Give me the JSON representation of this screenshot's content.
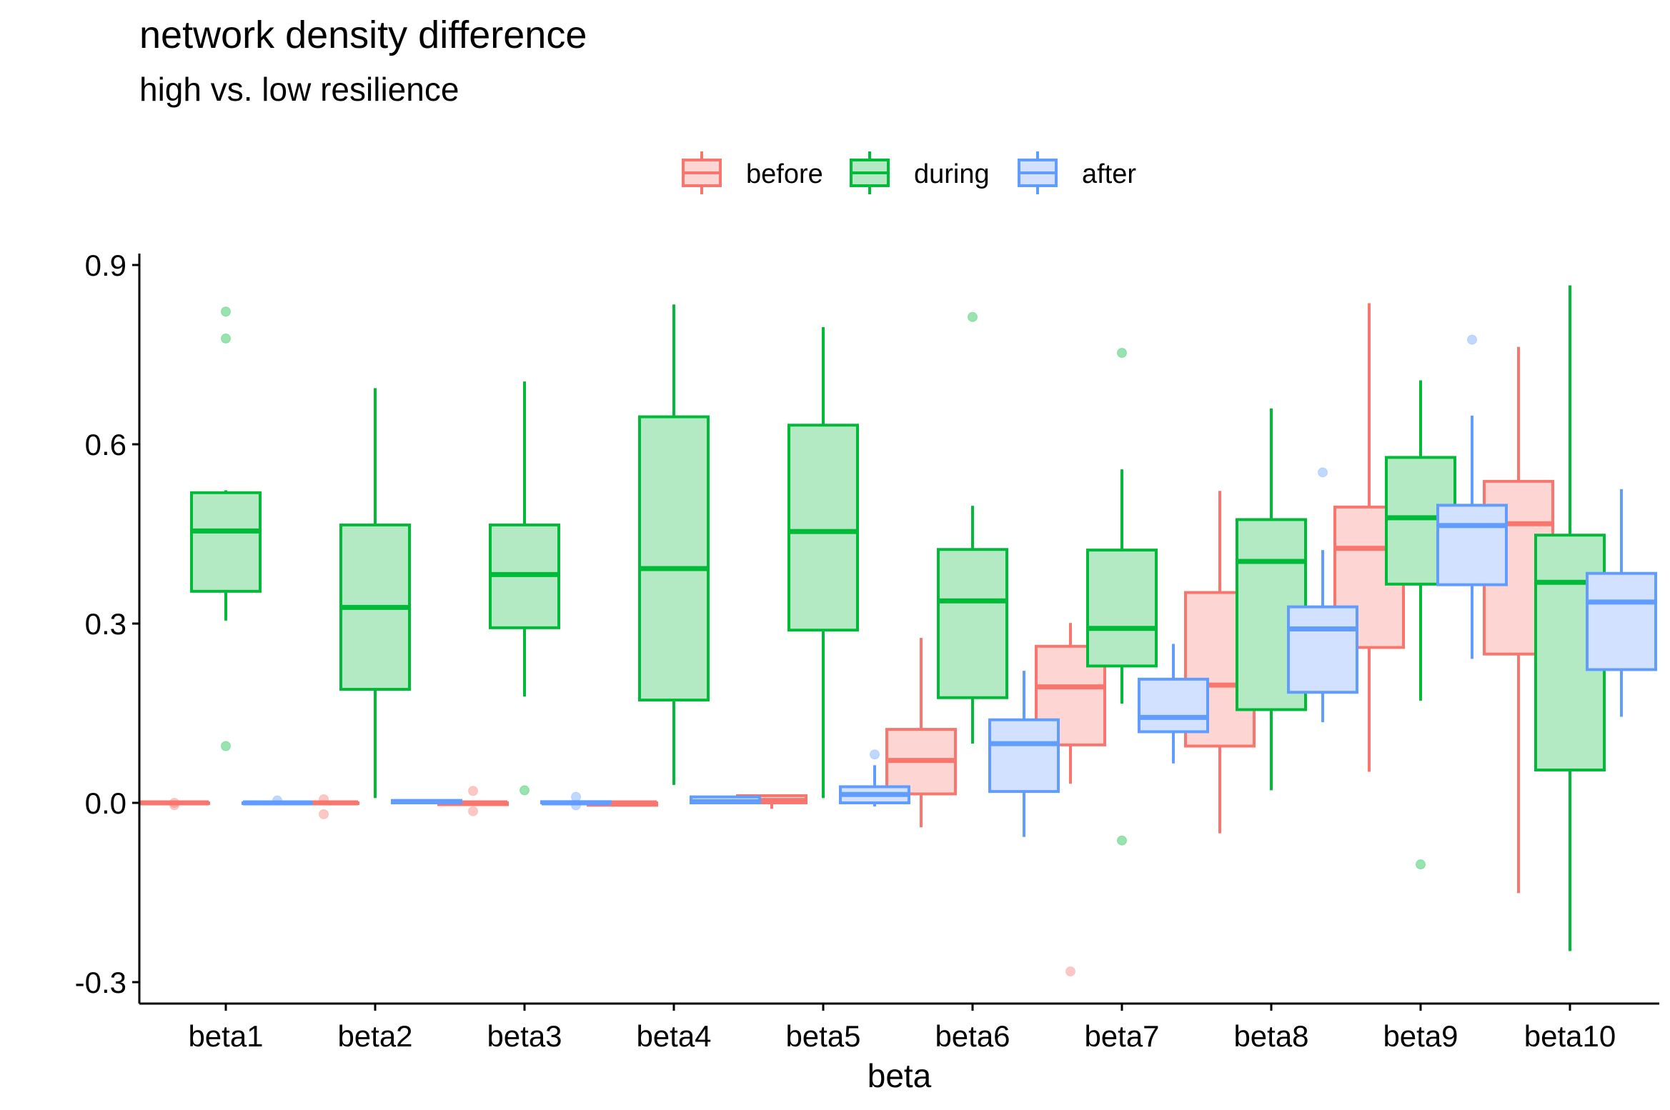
{
  "chart_data": {
    "type": "boxplot",
    "title": "network density difference",
    "subtitle": "high vs. low resilience",
    "xlabel": "beta",
    "ylabel": "",
    "ylim": [
      -0.34,
      0.91
    ],
    "yticks": [
      -0.3,
      0.0,
      0.3,
      0.6,
      0.9
    ],
    "ytick_labels": [
      "-0.3",
      "0.0",
      "0.3",
      "0.6",
      "0.9"
    ],
    "categories": [
      "beta1",
      "beta2",
      "beta3",
      "beta4",
      "beta5",
      "beta6",
      "beta7",
      "beta8",
      "beta9",
      "beta10"
    ],
    "legend_position": "top",
    "grid": false,
    "series": [
      {
        "name": "before",
        "color": "#F8766D",
        "fill": "#FDD6D3",
        "boxes": [
          {
            "category": "beta1",
            "min": 0.0,
            "q1": 0.0,
            "median": 0.0,
            "q3": 0.0,
            "max": 0.0,
            "outliers": [
              0.0,
              -0.004
            ]
          },
          {
            "category": "beta2",
            "min": 0.0,
            "q1": 0.0,
            "median": 0.0,
            "q3": 0.0,
            "max": 0.0,
            "outliers": [
              0.006,
              -0.019
            ]
          },
          {
            "category": "beta3",
            "min": -0.003,
            "q1": -0.003,
            "median": 0.0,
            "q3": 0.0,
            "max": 0.0,
            "outliers": [
              0.02,
              -0.014
            ]
          },
          {
            "category": "beta4",
            "min": -0.006,
            "q1": -0.004,
            "median": 0.0,
            "q3": 0.0,
            "max": 0.002,
            "outliers": []
          },
          {
            "category": "beta5",
            "min": -0.01,
            "q1": 0.0,
            "median": 0.004,
            "q3": 0.012,
            "max": 0.014,
            "outliers": []
          },
          {
            "category": "beta6",
            "min": -0.041,
            "q1": 0.015,
            "median": 0.071,
            "q3": 0.123,
            "max": 0.276,
            "outliers": []
          },
          {
            "category": "beta7",
            "min": 0.032,
            "q1": 0.097,
            "median": 0.194,
            "q3": 0.262,
            "max": 0.301,
            "outliers": [
              -0.282
            ]
          },
          {
            "category": "beta8",
            "min": -0.051,
            "q1": 0.095,
            "median": 0.197,
            "q3": 0.352,
            "max": 0.522,
            "outliers": []
          },
          {
            "category": "beta9",
            "min": 0.052,
            "q1": 0.26,
            "median": 0.426,
            "q3": 0.495,
            "max": 0.836,
            "outliers": []
          },
          {
            "category": "beta10",
            "min": -0.151,
            "q1": 0.249,
            "median": 0.467,
            "q3": 0.538,
            "max": 0.763,
            "outliers": []
          }
        ]
      },
      {
        "name": "during",
        "color": "#00BA38",
        "fill": "#B3EAC3",
        "boxes": [
          {
            "category": "beta1",
            "min": 0.305,
            "q1": 0.354,
            "median": 0.455,
            "q3": 0.519,
            "max": 0.523,
            "outliers": [
              0.822,
              0.777,
              0.095
            ]
          },
          {
            "category": "beta2",
            "min": 0.008,
            "q1": 0.19,
            "median": 0.327,
            "q3": 0.465,
            "max": 0.694,
            "outliers": []
          },
          {
            "category": "beta3",
            "min": 0.178,
            "q1": 0.293,
            "median": 0.382,
            "q3": 0.465,
            "max": 0.705,
            "outliers": [
              0.021
            ]
          },
          {
            "category": "beta4",
            "min": 0.03,
            "q1": 0.172,
            "median": 0.392,
            "q3": 0.646,
            "max": 0.834,
            "outliers": []
          },
          {
            "category": "beta5",
            "min": 0.008,
            "q1": 0.289,
            "median": 0.454,
            "q3": 0.632,
            "max": 0.796,
            "outliers": []
          },
          {
            "category": "beta6",
            "min": 0.099,
            "q1": 0.176,
            "median": 0.338,
            "q3": 0.424,
            "max": 0.497,
            "outliers": [
              0.813
            ]
          },
          {
            "category": "beta7",
            "min": 0.166,
            "q1": 0.229,
            "median": 0.292,
            "q3": 0.423,
            "max": 0.558,
            "outliers": [
              0.753,
              -0.063
            ]
          },
          {
            "category": "beta8",
            "min": 0.021,
            "q1": 0.156,
            "median": 0.404,
            "q3": 0.474,
            "max": 0.66,
            "outliers": []
          },
          {
            "category": "beta9",
            "min": 0.171,
            "q1": 0.366,
            "median": 0.477,
            "q3": 0.578,
            "max": 0.707,
            "outliers": [
              -0.103
            ]
          },
          {
            "category": "beta10",
            "min": -0.248,
            "q1": 0.055,
            "median": 0.369,
            "q3": 0.448,
            "max": 0.866,
            "outliers": []
          }
        ]
      },
      {
        "name": "after",
        "color": "#619CFF",
        "fill": "#D1E1FF",
        "boxes": [
          {
            "category": "beta1",
            "min": 0.0,
            "q1": 0.0,
            "median": 0.0,
            "q3": 0.0,
            "max": 0.002,
            "outliers": [
              0.004
            ]
          },
          {
            "category": "beta2",
            "min": 0.0,
            "q1": 0.0,
            "median": 0.002,
            "q3": 0.004,
            "max": 0.004,
            "outliers": []
          },
          {
            "category": "beta3",
            "min": 0.0,
            "q1": 0.0,
            "median": 0.0,
            "q3": 0.002,
            "max": 0.004,
            "outliers": [
              0.01,
              -0.004
            ]
          },
          {
            "category": "beta4",
            "min": 0.0,
            "q1": 0.0,
            "median": 0.002,
            "q3": 0.01,
            "max": 0.012,
            "outliers": []
          },
          {
            "category": "beta5",
            "min": -0.006,
            "q1": 0.0,
            "median": 0.014,
            "q3": 0.027,
            "max": 0.063,
            "outliers": [
              0.081
            ]
          },
          {
            "category": "beta6",
            "min": -0.057,
            "q1": 0.019,
            "median": 0.099,
            "q3": 0.139,
            "max": 0.221,
            "outliers": []
          },
          {
            "category": "beta7",
            "min": 0.066,
            "q1": 0.119,
            "median": 0.143,
            "q3": 0.207,
            "max": 0.266,
            "outliers": []
          },
          {
            "category": "beta8",
            "min": 0.135,
            "q1": 0.185,
            "median": 0.291,
            "q3": 0.328,
            "max": 0.423,
            "outliers": [
              0.553
            ]
          },
          {
            "category": "beta9",
            "min": 0.241,
            "q1": 0.365,
            "median": 0.464,
            "q3": 0.498,
            "max": 0.648,
            "outliers": [
              0.775
            ]
          },
          {
            "category": "beta10",
            "min": 0.144,
            "q1": 0.223,
            "median": 0.336,
            "q3": 0.384,
            "max": 0.525,
            "outliers": []
          }
        ]
      }
    ]
  }
}
